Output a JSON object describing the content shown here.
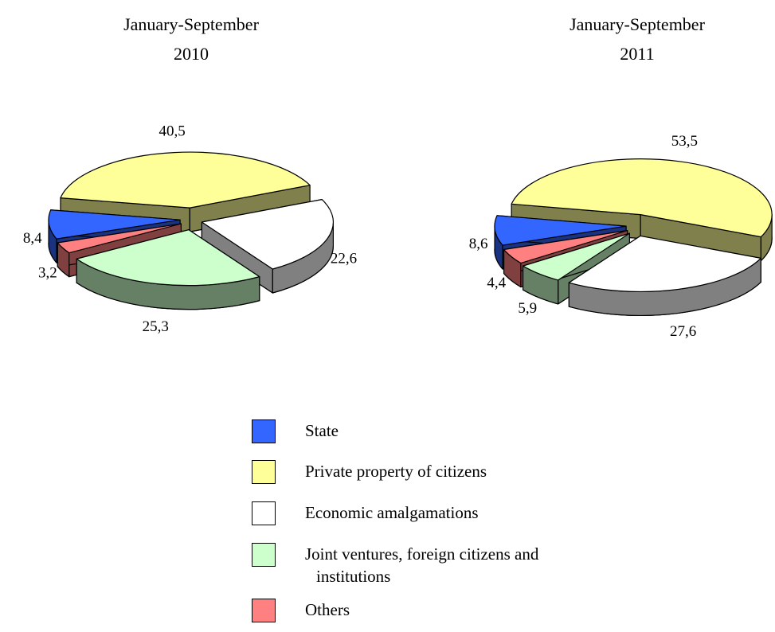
{
  "chart_data": [
    {
      "type": "pie",
      "title": "January-September 2010",
      "categories": [
        "State",
        "Private property of citizens",
        "Economic amalgamations",
        "Joint ventures, foreign citizens and institutions",
        "Others"
      ],
      "values": [
        8.4,
        40.5,
        22.6,
        25.3,
        3.2
      ],
      "value_labels": [
        "8,4",
        "40,5",
        "22,6",
        "25,3",
        "3,2"
      ],
      "colors": [
        "#3366ff",
        "#ffff99",
        "#ffffff",
        "#ccffcc",
        "#ff8080"
      ]
    },
    {
      "type": "pie",
      "title": "January-September 2011",
      "categories": [
        "State",
        "Private property of citizens",
        "Economic amalgamations",
        "Joint ventures, foreign citizens and institutions",
        "Others"
      ],
      "values": [
        8.6,
        53.5,
        27.6,
        5.9,
        4.4
      ],
      "value_labels": [
        "8,6",
        "53,5",
        "27,6",
        "5,9",
        "4,4"
      ],
      "colors": [
        "#3366ff",
        "#ffff99",
        "#ffffff",
        "#ccffcc",
        "#ff8080"
      ]
    }
  ]
}
